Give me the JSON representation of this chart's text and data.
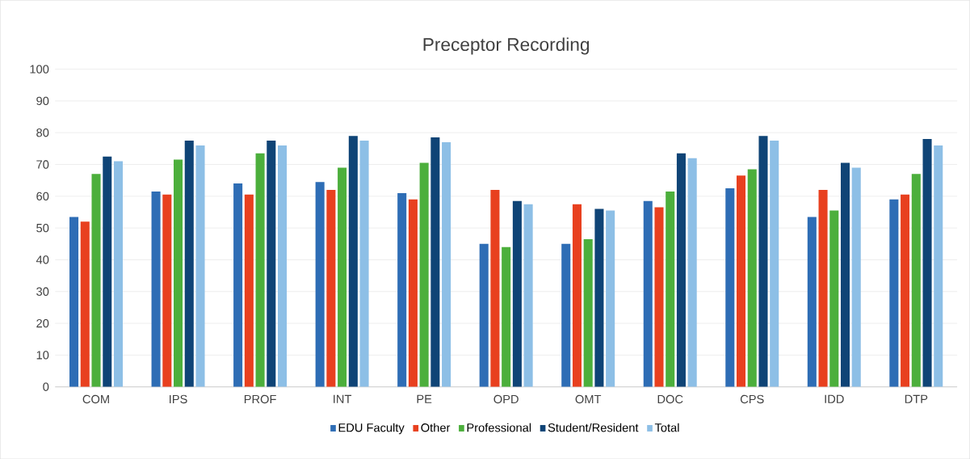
{
  "chart_data": {
    "type": "bar",
    "title": "Preceptor Recording",
    "categories": [
      "COM",
      "IPS",
      "PROF",
      "INT",
      "PE",
      "OPD",
      "OMT",
      "DOC",
      "CPS",
      "IDD",
      "DTP"
    ],
    "series": [
      {
        "name": "EDU Faculty",
        "color": "#2e6db5",
        "values": [
          53.5,
          61.5,
          64,
          64.5,
          61,
          45,
          45,
          58.5,
          62.5,
          53.5,
          59
        ]
      },
      {
        "name": "Other",
        "color": "#e8401f",
        "values": [
          52,
          60.5,
          60.5,
          62,
          59,
          62,
          57.5,
          56.5,
          66.5,
          62,
          60.5
        ]
      },
      {
        "name": "Professional",
        "color": "#4caf3c",
        "values": [
          67,
          71.5,
          73.5,
          69,
          70.5,
          44,
          46.5,
          61.5,
          68.5,
          55.5,
          67
        ]
      },
      {
        "name": "Student/Resident",
        "color": "#0f4476",
        "values": [
          72.5,
          77.5,
          77.5,
          79,
          78.5,
          58.5,
          56,
          73.5,
          79,
          70.5,
          78
        ]
      },
      {
        "name": "Total",
        "color": "#8dbfe6",
        "values": [
          71,
          76,
          76,
          77.5,
          77,
          57.5,
          55.5,
          72,
          77.5,
          69,
          76
        ]
      }
    ],
    "ylim": [
      0,
      100
    ],
    "yticks": [
      0,
      10,
      20,
      30,
      40,
      50,
      60,
      70,
      80,
      90,
      100
    ],
    "grid": "y",
    "legend": "bottom"
  }
}
